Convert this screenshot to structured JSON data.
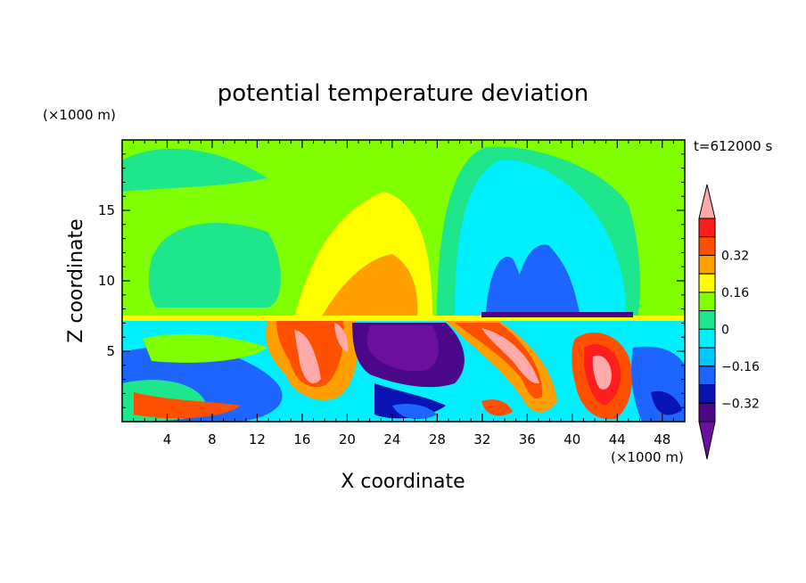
{
  "chart_data": {
    "type": "heatmap",
    "title": "potential temperature deviation",
    "time_label": "t=612000 s",
    "xlabel": "X coordinate",
    "ylabel": "Z coordinate",
    "x_units": "(×1000 m)",
    "y_units": "(×1000 m)",
    "xlim": [
      0,
      50
    ],
    "ylim": [
      0,
      20
    ],
    "x_ticks": [
      4,
      8,
      12,
      16,
      20,
      24,
      28,
      32,
      36,
      40,
      44,
      48
    ],
    "y_ticks": [
      5,
      10,
      15
    ],
    "colorbar": {
      "levels": [
        -0.48,
        -0.4,
        -0.32,
        -0.24,
        -0.16,
        -0.08,
        0,
        0.08,
        0.16,
        0.24,
        0.32,
        0.4,
        0.48
      ],
      "labeled_levels": [
        "0.32",
        "0.16",
        "0",
        "−0.16",
        "−0.32"
      ],
      "colors": [
        "#6a0f9e",
        "#4a078a",
        "#0a14b4",
        "#1e64ff",
        "#00c8ff",
        "#00f0ff",
        "#1ee68c",
        "#80ff00",
        "#ffff00",
        "#ffa000",
        "#ff5000",
        "#ff1e1e",
        "#ffaaaa"
      ],
      "extend": "both"
    },
    "regions": [
      {
        "name": "upper-green-left",
        "level": "0 to -0.08",
        "x": [
          2,
          14
        ],
        "z": [
          8,
          13.5
        ]
      },
      {
        "name": "positive-plume",
        "level": "0.08 to 0.24",
        "x": [
          15,
          28
        ],
        "z": [
          7.5,
          16.5
        ]
      },
      {
        "name": "negative-plume",
        "level": "-0.08 to -0.32",
        "x": [
          28,
          42
        ],
        "z": [
          7.5,
          19
        ]
      },
      {
        "name": "strong-negative-low",
        "level": "< -0.4",
        "x": [
          21,
          28
        ],
        "z": [
          2,
          7
        ]
      },
      {
        "name": "strong-positive-low",
        "level": "> 0.32",
        "x": [
          32,
          45
        ],
        "z": [
          1,
          7
        ]
      }
    ]
  }
}
